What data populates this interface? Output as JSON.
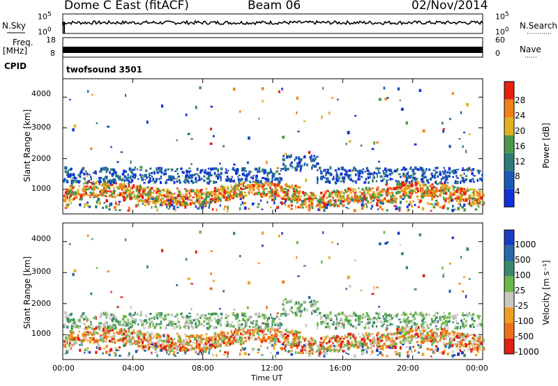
{
  "header": {
    "title": "Dome C East (fitACF)",
    "beam": "Beam 06",
    "date": "02/Nov/2014"
  },
  "strips": {
    "nsky_label": "N.Sky",
    "nsky_top": "10^5",
    "nsky_bottom": "10^0",
    "nsearch_label": "N.Search",
    "nsearch_top": "10^5",
    "nsearch_bottom": "10^0",
    "freq_label_line1": "Freq.",
    "freq_label_line2": "[MHz]",
    "freq_top": "18",
    "freq_bottom": "8",
    "nave_label": "Nave",
    "nave_top": "60",
    "nave_bottom": "0",
    "cpid_label": "CPID",
    "cpid_value": "twofsound 3501"
  },
  "chart_data": [
    {
      "type": "heatmap",
      "panel": "power",
      "ylabel": "Slant Range [km]",
      "yticks": [
        "1000",
        "2000",
        "3000",
        "4000"
      ],
      "ylim": [
        200,
        4600
      ],
      "xlim": [
        "00:00",
        "24:00"
      ],
      "colorbar_label": "Power [dB]",
      "colorbar_ticks": [
        "4",
        "8",
        "12",
        "16",
        "20",
        "24",
        "28"
      ],
      "colorbar_colors": [
        "#1030d8",
        "#1a58b8",
        "#2f7b7a",
        "#4a9a4a",
        "#e0b020",
        "#f08018",
        "#e82010"
      ],
      "colorbar_range": [
        0,
        32
      ]
    },
    {
      "type": "heatmap",
      "panel": "velocity",
      "ylabel": "Slant Range [km]",
      "yticks": [
        "1000",
        "2000",
        "3000",
        "4000"
      ],
      "ylim": [
        200,
        4600
      ],
      "xlim": [
        "00:00",
        "24:00"
      ],
      "xticks": [
        "00:00",
        "04:00",
        "08:00",
        "12:00",
        "16:00",
        "20:00",
        "00:00"
      ],
      "xlabel": "Time UT",
      "colorbar_label": "Velocity [m s⁻¹]",
      "colorbar_ticks": [
        "1000",
        "500",
        "100",
        "25",
        "-25",
        "-100",
        "-500",
        "-1000"
      ],
      "colorbar_colors": [
        "#1a3cc0",
        "#2a68a8",
        "#3a8a6a",
        "#6ab84a",
        "#c8c8c0",
        "#f0a020",
        "#f07018",
        "#e02010"
      ]
    }
  ]
}
